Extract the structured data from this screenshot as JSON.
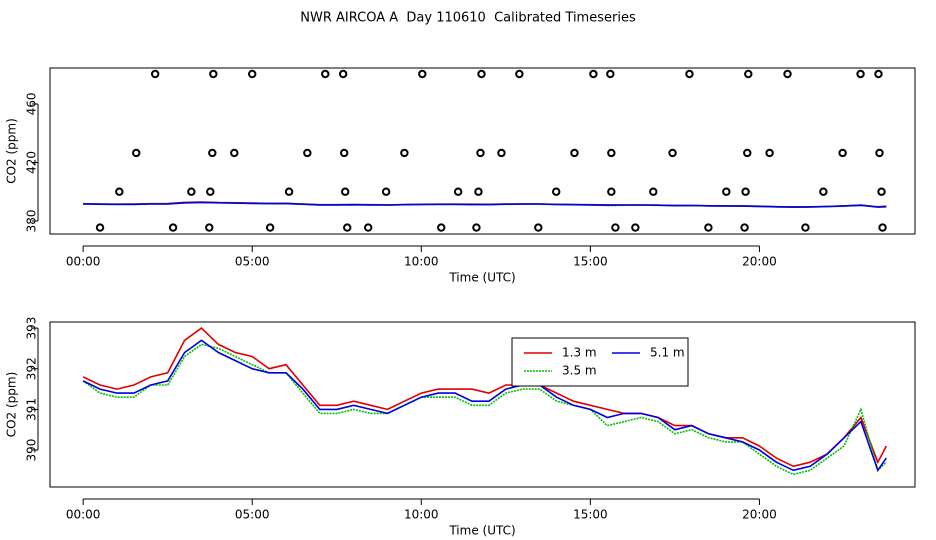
{
  "chart_data": [
    {
      "type": "scatter",
      "title": "NWR AIRCOA A  Day 110610  Calibrated Timeseries",
      "xlabel": "Time (UTC)",
      "ylabel": "CO2 (ppm)",
      "color": "#000000",
      "xlim": [
        -0.98,
        24.6
      ],
      "ylim": [
        371.1,
        484.6
      ],
      "xticks": [
        {
          "value": 0,
          "label": "00:00"
        },
        {
          "value": 5,
          "label": "05:00"
        },
        {
          "value": 10,
          "label": "10:00"
        },
        {
          "value": 15,
          "label": "15:00"
        },
        {
          "value": 20,
          "label": "20:00"
        }
      ],
      "yticks": [
        380,
        420,
        460
      ],
      "x": [
        2.13,
        3.85,
        5.0,
        7.16,
        7.69,
        10.03,
        11.78,
        12.9,
        15.09,
        15.59,
        17.93,
        19.67,
        20.83,
        22.99,
        23.52,
        1.57,
        3.82,
        4.47,
        6.63,
        7.72,
        9.5,
        11.75,
        12.37,
        14.53,
        15.62,
        17.43,
        19.64,
        20.3,
        22.46,
        23.55,
        1.07,
        3.2,
        3.76,
        6.09,
        7.75,
        8.96,
        11.09,
        11.69,
        13.99,
        15.62,
        16.86,
        19.02,
        19.59,
        21.89,
        23.61,
        0.5,
        2.66,
        3.73,
        5.53,
        7.81,
        8.43,
        10.59,
        11.63,
        13.46,
        15.74,
        16.33,
        18.49,
        19.56,
        21.36,
        23.64
      ],
      "values": [
        480.5,
        480.5,
        480.5,
        480.5,
        480.5,
        480.5,
        480.5,
        480.5,
        480.5,
        480.5,
        480.5,
        480.5,
        480.5,
        480.5,
        480.5,
        426.5,
        426.5,
        426.5,
        426.5,
        426.5,
        426.5,
        426.5,
        426.5,
        426.5,
        426.5,
        426.5,
        426.5,
        426.5,
        426.5,
        426.5,
        400,
        400,
        400,
        400,
        400,
        400,
        400,
        400,
        400,
        400,
        400,
        400,
        400,
        400,
        400,
        375.5,
        375.5,
        375.5,
        375.5,
        375.5,
        375.5,
        375.5,
        375.5,
        375.5,
        375.5,
        375.5,
        375.5,
        375.5,
        375.5,
        375.5
      ]
    },
    {
      "type": "line",
      "xlabel": "Time (UTC)",
      "ylabel": "CO2 (ppm)",
      "legend": "top",
      "xlim": [
        -0.98,
        24.6
      ],
      "ylim": [
        389.09,
        393.15
      ],
      "xticks": [
        {
          "value": 0,
          "label": "00:00"
        },
        {
          "value": 5,
          "label": "05:00"
        },
        {
          "value": 10,
          "label": "10:00"
        },
        {
          "value": 15,
          "label": "15:00"
        },
        {
          "value": 20,
          "label": "20:00"
        }
      ],
      "yticks": [
        390,
        391,
        392,
        393
      ],
      "x": [
        0,
        0.5,
        1,
        1.5,
        2,
        2.5,
        3,
        3.5,
        4,
        4.5,
        5,
        5.5,
        6,
        6.5,
        7,
        7.5,
        8,
        8.5,
        9,
        9.5,
        10,
        10.5,
        11,
        11.5,
        12,
        12.5,
        13,
        13.5,
        14,
        14.5,
        15,
        15.5,
        16,
        16.5,
        17,
        17.5,
        18,
        18.5,
        19,
        19.5,
        20,
        20.5,
        21,
        21.5,
        22,
        22.5,
        23,
        23.5,
        23.75
      ],
      "series": [
        {
          "name": "1.3 m",
          "color": "#e00000",
          "values": [
            391.8,
            391.6,
            391.5,
            391.6,
            391.8,
            391.9,
            392.7,
            393.0,
            392.6,
            392.4,
            392.3,
            392.0,
            392.1,
            391.6,
            391.1,
            391.1,
            391.2,
            391.1,
            391.0,
            391.2,
            391.4,
            391.5,
            391.5,
            391.5,
            391.4,
            391.6,
            391.6,
            391.6,
            391.4,
            391.2,
            391.1,
            391.0,
            390.9,
            390.9,
            390.8,
            390.6,
            390.6,
            390.4,
            390.3,
            390.3,
            390.1,
            389.8,
            389.6,
            389.7,
            389.9,
            390.3,
            390.8,
            389.7,
            390.1
          ]
        },
        {
          "name": "3.5 m",
          "color": "#00c000",
          "values": [
            391.7,
            391.4,
            391.3,
            391.3,
            391.6,
            391.6,
            392.3,
            392.6,
            392.5,
            392.3,
            392.1,
            391.9,
            391.9,
            391.4,
            390.9,
            390.9,
            391.0,
            390.9,
            390.9,
            391.1,
            391.3,
            391.3,
            391.3,
            391.1,
            391.1,
            391.4,
            391.5,
            391.5,
            391.2,
            391.1,
            391.0,
            390.6,
            390.7,
            390.8,
            390.7,
            390.4,
            390.5,
            390.3,
            390.2,
            390.2,
            389.9,
            389.6,
            389.4,
            389.5,
            389.8,
            390.1,
            391.0,
            389.5,
            389.7
          ]
        },
        {
          "name": "5.1 m",
          "color": "#0000e0",
          "values": [
            391.7,
            391.5,
            391.4,
            391.4,
            391.6,
            391.7,
            392.4,
            392.7,
            392.4,
            392.2,
            392.0,
            391.9,
            391.9,
            391.5,
            391.0,
            391.0,
            391.1,
            391.0,
            390.9,
            391.1,
            391.3,
            391.4,
            391.4,
            391.2,
            391.2,
            391.5,
            391.6,
            391.6,
            391.3,
            391.1,
            391.0,
            390.8,
            390.9,
            390.9,
            390.8,
            390.5,
            390.6,
            390.4,
            390.3,
            390.2,
            390.0,
            389.7,
            389.5,
            389.6,
            389.9,
            390.3,
            390.7,
            389.5,
            389.8
          ]
        }
      ]
    }
  ]
}
